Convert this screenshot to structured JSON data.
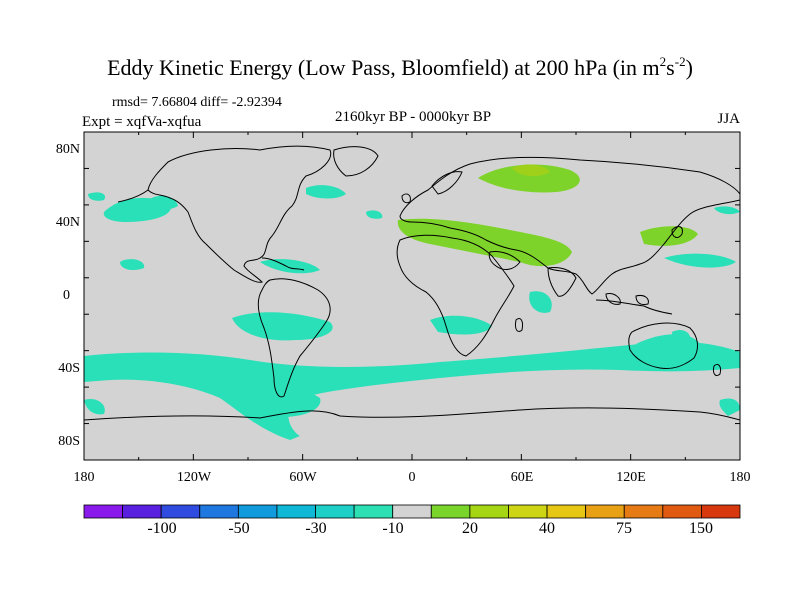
{
  "title": {
    "main": "Eddy Kinetic Energy (Low Pass, Bloomfield) at 200 hPa (in m",
    "sup1": "2",
    "mid": "s",
    "sup2": "-2",
    "end": ")"
  },
  "stats": "rmsd= 7.66804 diff= -2.92394",
  "experiment": "Expt = xqfVa-xqfua",
  "period": "2160kyr BP - 0000kyr BP",
  "season": "JJA",
  "map": {
    "background_color": "#d3d3d3",
    "y_labels": [
      "80N",
      "40N",
      "0",
      "40S",
      "80S"
    ],
    "x_labels": [
      "180",
      "120W",
      "60W",
      "0",
      "60E",
      "120E",
      "180"
    ],
    "anomaly_colors": {
      "neg10": "#29e0b8",
      "neg30": "#1ec8c8",
      "pos10": "#7ed32a",
      "pos20": "#9fd01a"
    }
  },
  "colorbar": {
    "colors": [
      "#8a1aeb",
      "#5a20e0",
      "#2f4be0",
      "#1e78e0",
      "#129bdc",
      "#10b8d8",
      "#1ecfc8",
      "#2ce0b4",
      "#d3d3d3",
      "#7ad52a",
      "#a6d514",
      "#cdd514",
      "#e6c814",
      "#e8a014",
      "#e67a14",
      "#e05a12",
      "#d8380e"
    ],
    "labels": [
      "-100",
      "-50",
      "-30",
      "-10",
      "20",
      "40",
      "75",
      "150"
    ]
  }
}
